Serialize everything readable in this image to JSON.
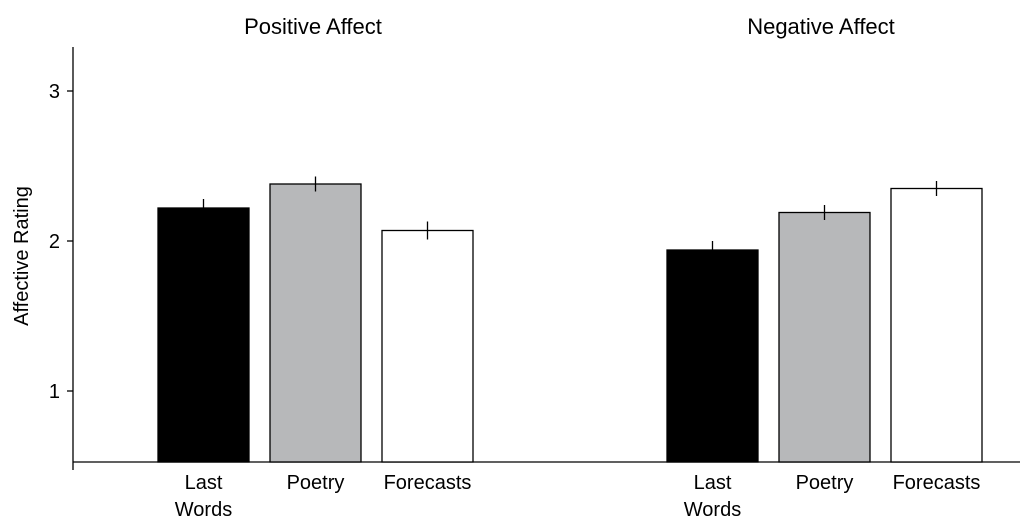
{
  "chart_data": {
    "type": "bar",
    "ylabel": "Affective Rating",
    "yticks": [
      "1",
      "2",
      "3"
    ],
    "ylim": [
      0.53,
      3.3
    ],
    "grid": false,
    "categories": [
      [
        "Last",
        "Words"
      ],
      [
        "Poetry"
      ],
      [
        "Forecasts"
      ]
    ],
    "bar_colors": [
      "#000000",
      "#b7b8ba",
      "#ffffff"
    ],
    "panels": [
      {
        "title": "Positive Affect",
        "values": [
          2.22,
          2.38,
          2.07
        ],
        "errors": [
          0.06,
          0.05,
          0.06
        ]
      },
      {
        "title": "Negative Affect",
        "values": [
          1.94,
          2.19,
          2.35
        ],
        "errors": [
          0.06,
          0.05,
          0.05
        ]
      }
    ]
  }
}
